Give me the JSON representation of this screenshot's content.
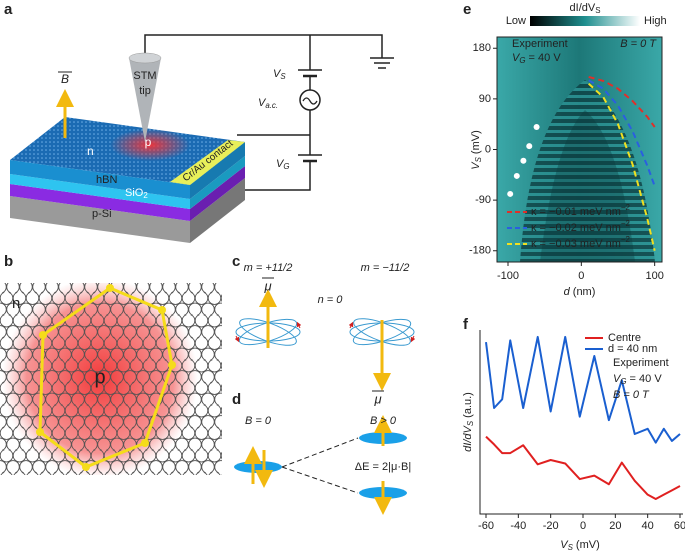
{
  "panel_labels": [
    "a",
    "b",
    "c",
    "d",
    "e",
    "f"
  ],
  "panel_a": {
    "field_label": "B",
    "region_n": "n",
    "region_p": "p",
    "tip_label": [
      "STM",
      "tip"
    ],
    "contact": "Cr/Au contact",
    "layers": {
      "hbn": "hBN",
      "sio2": {
        "main": "SiO",
        "sub": "2"
      },
      "psi": "p-Si"
    },
    "vs": {
      "main": "V",
      "sub": "S"
    },
    "vac": {
      "main": "V",
      "sub": "a.c."
    },
    "vg": {
      "main": "V",
      "sub": "G"
    }
  },
  "panel_b": {
    "region_n": "n",
    "region_p": "p"
  },
  "panel_c": {
    "m_plus": "m = +11/2",
    "m_minus": "m = −11/2",
    "n": "n = 0",
    "mu_up": "μ",
    "mu_down": "μ"
  },
  "panel_d": {
    "b_zero": "B = 0",
    "b_pos": "B > 0",
    "delta": "ΔE = 2|μ·B|"
  },
  "chart_data": [
    {
      "type": "line",
      "title": {
        "main": "dI/dV",
        "sub": "S"
      },
      "colorbar": {
        "low": "Low",
        "high": "High"
      },
      "annotations": {
        "experiment": "Experiment",
        "vg": {
          "main": "V",
          "sub": "G",
          "tail": " = 40 V"
        },
        "b": "B = 0 T"
      },
      "x_label": {
        "main": "d",
        "tail": " (nm)"
      },
      "y_label": {
        "main": "V",
        "sub": "S",
        "tail": " (mV)"
      },
      "xlim": [
        -115,
        110
      ],
      "xticks": [
        -100,
        0,
        100
      ],
      "ylim": [
        -200,
        200
      ],
      "yticks": [
        180,
        90,
        0,
        -90,
        -180
      ],
      "series": [
        {
          "name": "κ = −0.01 meV nm",
          "name_sup": "−2",
          "color": "#e0302a",
          "x": [
            10,
            30,
            50,
            70,
            90,
            100
          ],
          "values": [
            129,
            122,
            108,
            86,
            58,
            40
          ]
        },
        {
          "name": "κ = −0.02 meV nm",
          "name_sup": "−2",
          "color": "#2a5fe0",
          "x": [
            10,
            30,
            50,
            70,
            90,
            100
          ],
          "values": [
            123,
            108,
            78,
            32,
            -29,
            -65
          ]
        },
        {
          "name": "κ = −0.03 meV nm",
          "name_sup": "−2",
          "color": "#f0e020",
          "x": [
            10,
            30,
            50,
            70,
            90,
            100
          ],
          "values": [
            117,
            93,
            45,
            -27,
            -123,
            -180
          ]
        }
      ],
      "points": {
        "color": "#ffffff",
        "x": [
          -61,
          -71,
          -79,
          -88,
          -97
        ],
        "values": [
          40,
          6,
          -20,
          -47,
          -79
        ]
      }
    },
    {
      "type": "line",
      "x": [
        -60,
        -55,
        -50,
        -45,
        -37,
        -28,
        -20,
        -11,
        -2,
        7,
        16,
        24,
        32,
        40,
        45,
        50,
        55,
        60
      ],
      "xlim": [
        -60,
        60
      ],
      "xticks": [
        -60,
        -40,
        -20,
        0,
        20,
        40,
        60
      ],
      "ylim": [
        0,
        10.5
      ],
      "series": [
        {
          "name": "Centre",
          "color": "#e02020",
          "values": [
            4.35,
            3.9,
            3.4,
            3.4,
            3.85,
            2.75,
            3.0,
            2.8,
            1.9,
            2.1,
            1.6,
            2.85,
            1.8,
            1.0,
            0.75,
            1.0,
            1.25,
            1.5
          ]
        },
        {
          "name": "d = 40 nm",
          "color": "#1a5fd0",
          "values": [
            9.8,
            6.0,
            6.5,
            9.9,
            6.0,
            10.1,
            5.8,
            10.1,
            5.5,
            9.0,
            5.3,
            7.6,
            4.5,
            4.8,
            4.0,
            4.8,
            4.1,
            4.5
          ]
        }
      ],
      "annotations": {
        "experiment": "Experiment",
        "vg": {
          "main": "V",
          "sub": "G",
          "tail": " = 40 V"
        },
        "b": "B = 0 T"
      },
      "x_label": {
        "main": "V",
        "sub": "S",
        "tail": " (mV)"
      },
      "y_label": {
        "main": "dI/dV",
        "sub": "S",
        "tail": " (a.u.)"
      }
    }
  ]
}
